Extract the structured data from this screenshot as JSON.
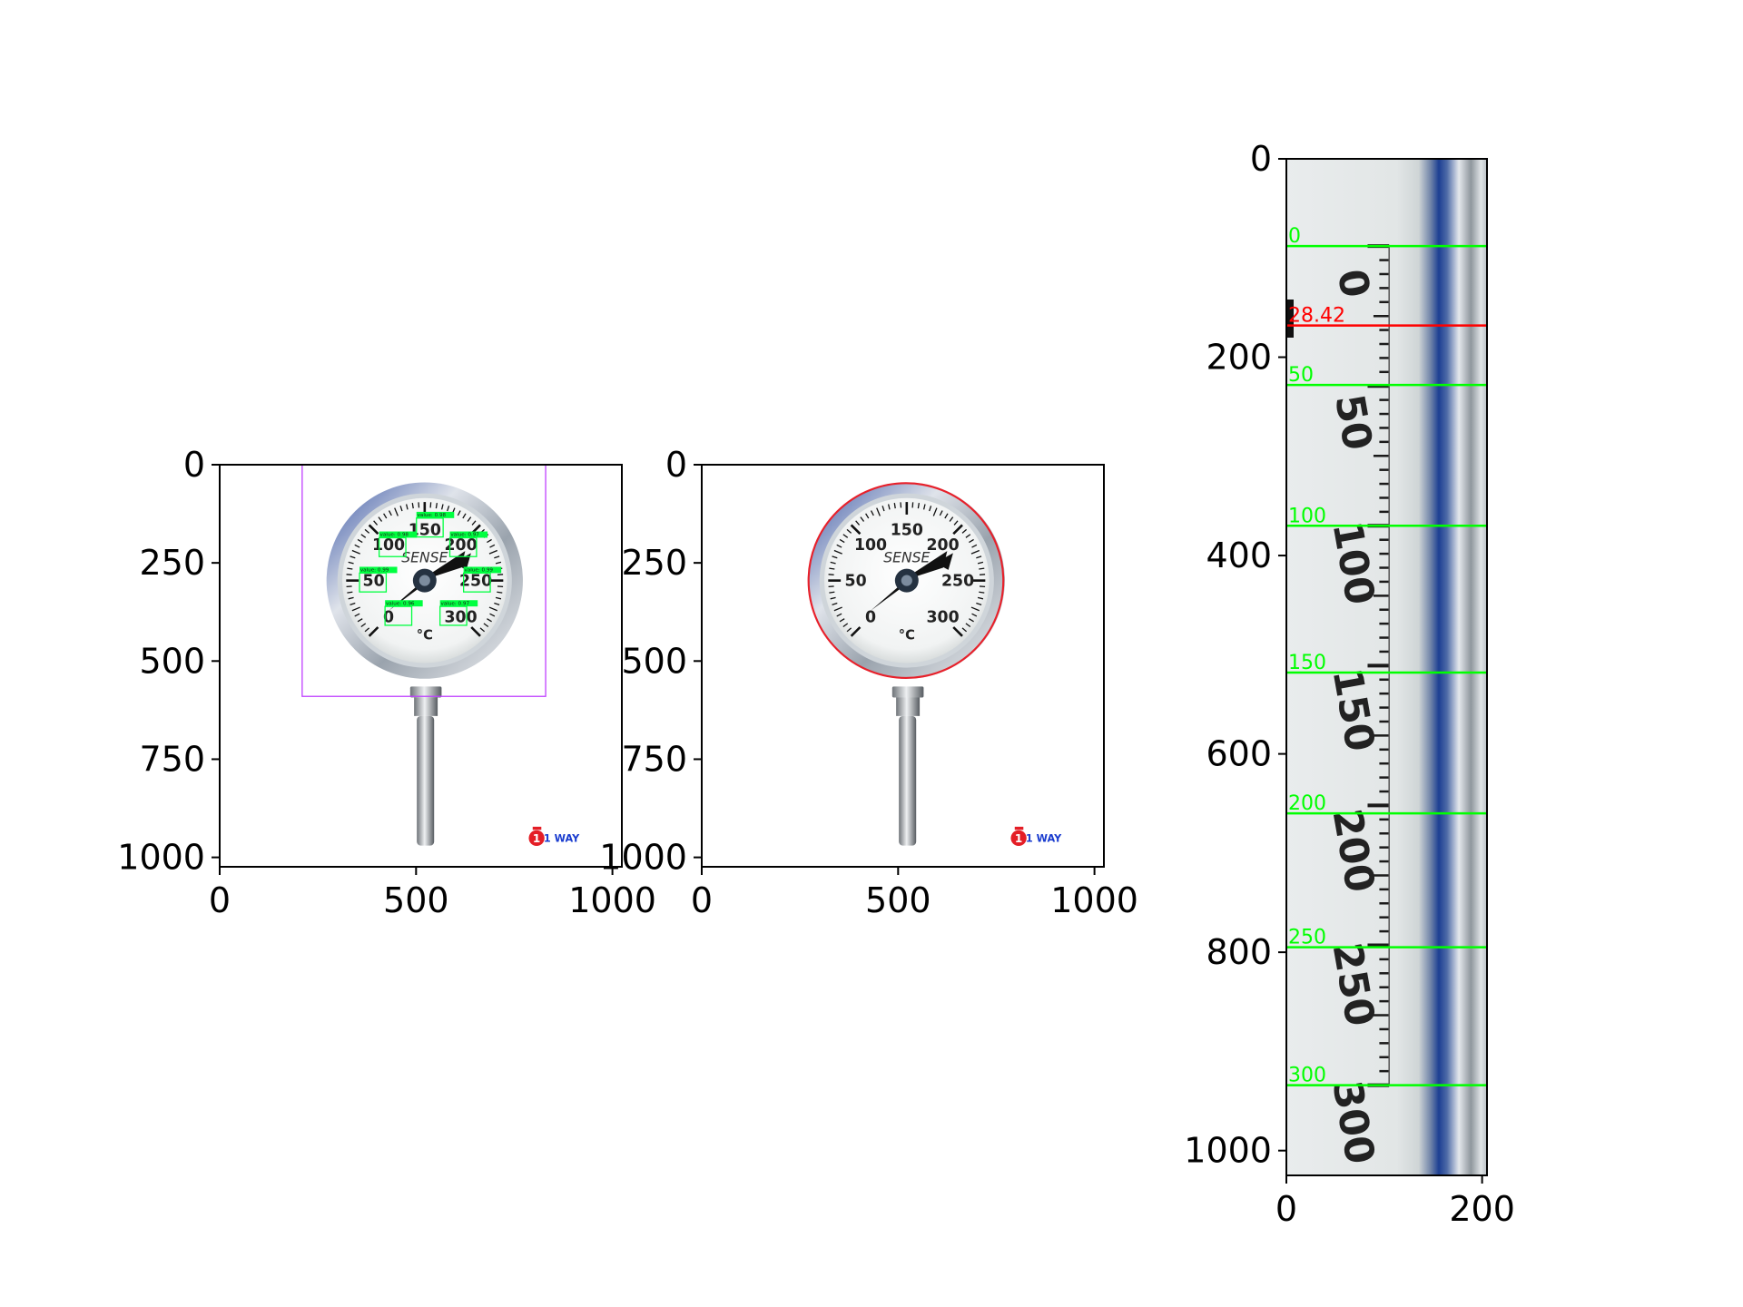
{
  "figure": {
    "panels": [
      {
        "id": "detections",
        "image": {
          "dial_numbers": [
            "0",
            "50",
            "100",
            "150",
            "200",
            "250",
            "300"
          ],
          "unit_label": "°C",
          "brand_label": "SENSE",
          "watermark": "1 WAY"
        },
        "detections": [
          {
            "text": "value: 0.96"
          },
          {
            "text": "value: 0.99"
          },
          {
            "text": "value: 0.98"
          },
          {
            "text": "value: 0.98"
          },
          {
            "text": "value: 0.97"
          },
          {
            "text": "value: 0.99"
          },
          {
            "text": "value: 0.97"
          }
        ],
        "colors": {
          "roi_box": "#bf40ff",
          "detection_box": "#00ff40"
        }
      },
      {
        "id": "ellipse-fit",
        "image": {
          "dial_numbers": [
            "0",
            "50",
            "100",
            "150",
            "200",
            "250",
            "300"
          ],
          "unit_label": "°C",
          "brand_label": "SENSE",
          "watermark": "1 WAY"
        },
        "colors": {
          "ellipse": "#e8202a"
        }
      },
      {
        "id": "unwrapped-scale",
        "image": {
          "scale_numbers": [
            "0",
            "50",
            "100",
            "150",
            "200",
            "250",
            "300"
          ]
        },
        "colors": {
          "scale_lines": "#00ff00",
          "pointer_line": "#ff0000"
        }
      }
    ]
  },
  "chart_data": [
    {
      "type": "image",
      "x_ticks": [
        "0",
        "500",
        "1000"
      ],
      "y_ticks": [
        "0",
        "250",
        "500",
        "750",
        "1000"
      ],
      "xlim": [
        0,
        1024
      ],
      "ylim": [
        1024,
        0
      ],
      "roi_box": {
        "x0": 210,
        "y0": 0,
        "x1": 830,
        "y1": 590
      },
      "detections": [
        {
          "label": "0",
          "score": 0.96,
          "x": 455,
          "y": 385
        },
        {
          "label": "50",
          "score": 0.99,
          "x": 390,
          "y": 300
        },
        {
          "label": "100",
          "score": 0.98,
          "x": 440,
          "y": 210
        },
        {
          "label": "150",
          "score": 0.98,
          "x": 535,
          "y": 160
        },
        {
          "label": "200",
          "score": 0.97,
          "x": 620,
          "y": 210
        },
        {
          "label": "250",
          "score": 0.99,
          "x": 655,
          "y": 300
        },
        {
          "label": "300",
          "score": 0.97,
          "x": 595,
          "y": 385
        }
      ]
    },
    {
      "type": "image",
      "x_ticks": [
        "0",
        "500",
        "1000"
      ],
      "y_ticks": [
        "0",
        "250",
        "500",
        "750",
        "1000"
      ],
      "xlim": [
        0,
        1024
      ],
      "ylim": [
        1024,
        0
      ],
      "ellipse": {
        "cx": 520,
        "cy": 295,
        "rx": 248,
        "ry": 248
      }
    },
    {
      "type": "image",
      "x_ticks": [
        "0",
        "200"
      ],
      "y_ticks": [
        "0",
        "200",
        "400",
        "600",
        "800",
        "1000"
      ],
      "xlim": [
        0,
        205
      ],
      "ylim": [
        1025,
        0
      ],
      "scale_lines": [
        {
          "label": "0",
          "y": 88
        },
        {
          "label": "50",
          "y": 228
        },
        {
          "label": "100",
          "y": 370
        },
        {
          "label": "150",
          "y": 518
        },
        {
          "label": "200",
          "y": 660
        },
        {
          "label": "250",
          "y": 795
        },
        {
          "label": "300",
          "y": 934
        }
      ],
      "pointer": {
        "label": "28.42",
        "y": 168
      }
    }
  ]
}
